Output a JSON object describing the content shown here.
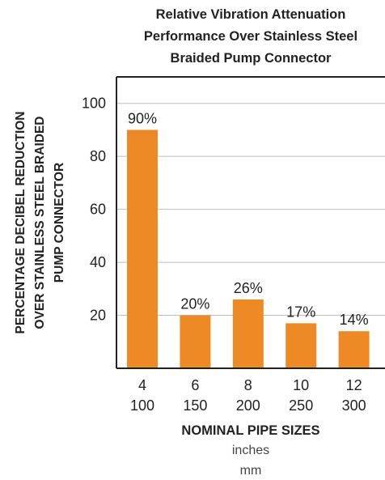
{
  "chart_data": {
    "type": "bar",
    "title_lines": [
      "Relative Vibration Attenuation",
      "Performance Over Stainless Steel",
      "Braided Pump Connector"
    ],
    "ylabel_lines": [
      "PERCENTAGE DECIBEL REDUCTION",
      "OVER STAINLESS STEEL BRAIDED",
      "PUMP CONNECTOR"
    ],
    "xlabel": "NOMINAL PIPE SIZES",
    "x_units": [
      "inches",
      "mm"
    ],
    "categories_inches": [
      "4",
      "6",
      "8",
      "10",
      "12"
    ],
    "categories_mm": [
      "100",
      "150",
      "200",
      "250",
      "300"
    ],
    "values": [
      90,
      20,
      26,
      17,
      14
    ],
    "data_labels": [
      "90%",
      "20%",
      "26%",
      "17%",
      "14%"
    ],
    "ylim": [
      0,
      110
    ],
    "yticks": [
      20,
      40,
      60,
      80,
      100
    ],
    "grid": true,
    "bar_color": "#ee8a25"
  }
}
